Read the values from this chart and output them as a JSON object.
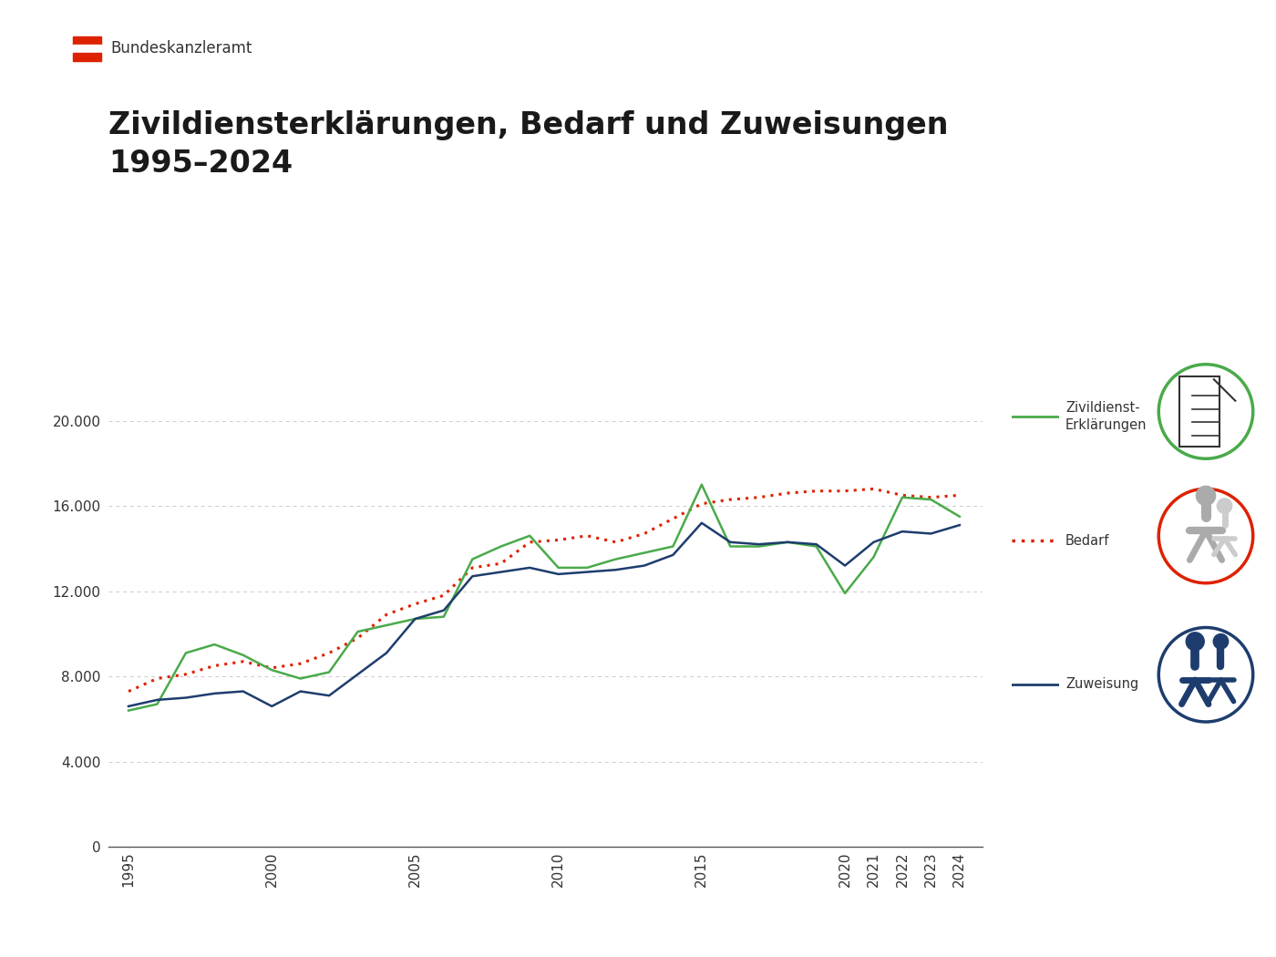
{
  "title_line1": "Zivildiensterklärungen, Bedarf und Zuweisungen",
  "title_line2": "1995–2024",
  "header_text": "Bundeskanzleramt",
  "background_color": "#ffffff",
  "title_color": "#1a1a1a",
  "years": [
    1995,
    1996,
    1997,
    1998,
    1999,
    2000,
    2001,
    2002,
    2003,
    2004,
    2005,
    2006,
    2007,
    2008,
    2009,
    2010,
    2011,
    2012,
    2013,
    2014,
    2015,
    2016,
    2017,
    2018,
    2019,
    2020,
    2021,
    2022,
    2023,
    2024
  ],
  "erklaerungen": [
    6400,
    6700,
    9100,
    9500,
    9000,
    8300,
    7900,
    8200,
    10100,
    10400,
    10700,
    10800,
    13500,
    14100,
    14600,
    13100,
    13100,
    13500,
    13800,
    14100,
    17000,
    14100,
    14100,
    14300,
    14100,
    11900,
    13600,
    16400,
    16300,
    15500
  ],
  "bedarf": [
    7300,
    7900,
    8100,
    8500,
    8700,
    8400,
    8600,
    9100,
    9800,
    10900,
    11400,
    11800,
    13100,
    13300,
    14300,
    14400,
    14600,
    14300,
    14700,
    15400,
    16100,
    16300,
    16400,
    16600,
    16700,
    16700,
    16800,
    16500,
    16400,
    16500
  ],
  "zuweisung": [
    6600,
    6900,
    7000,
    7200,
    7300,
    6600,
    7300,
    7100,
    8100,
    9100,
    10700,
    11100,
    12700,
    12900,
    13100,
    12800,
    12900,
    13000,
    13200,
    13700,
    15200,
    14300,
    14200,
    14300,
    14200,
    13200,
    14300,
    14800,
    14700,
    15100
  ],
  "green_color": "#4aaa4a",
  "red_color": "#dd2200",
  "blue_color": "#1e3d6e",
  "grid_color": "#cccccc",
  "yticks": [
    0,
    4000,
    8000,
    12000,
    16000,
    20000
  ],
  "ylim": [
    0,
    22000
  ],
  "xlim_left": 1994.3,
  "xlim_right": 2024.8,
  "xtick_years": [
    1995,
    2000,
    2005,
    2010,
    2015,
    2020,
    2021,
    2022,
    2023,
    2024
  ],
  "legend_green": "Zivildienst-\nErklärungen",
  "legend_red": "Bedarf",
  "legend_blue": "Zuweisung",
  "flag_red": "#dd2200",
  "flag_white": "#ffffff"
}
